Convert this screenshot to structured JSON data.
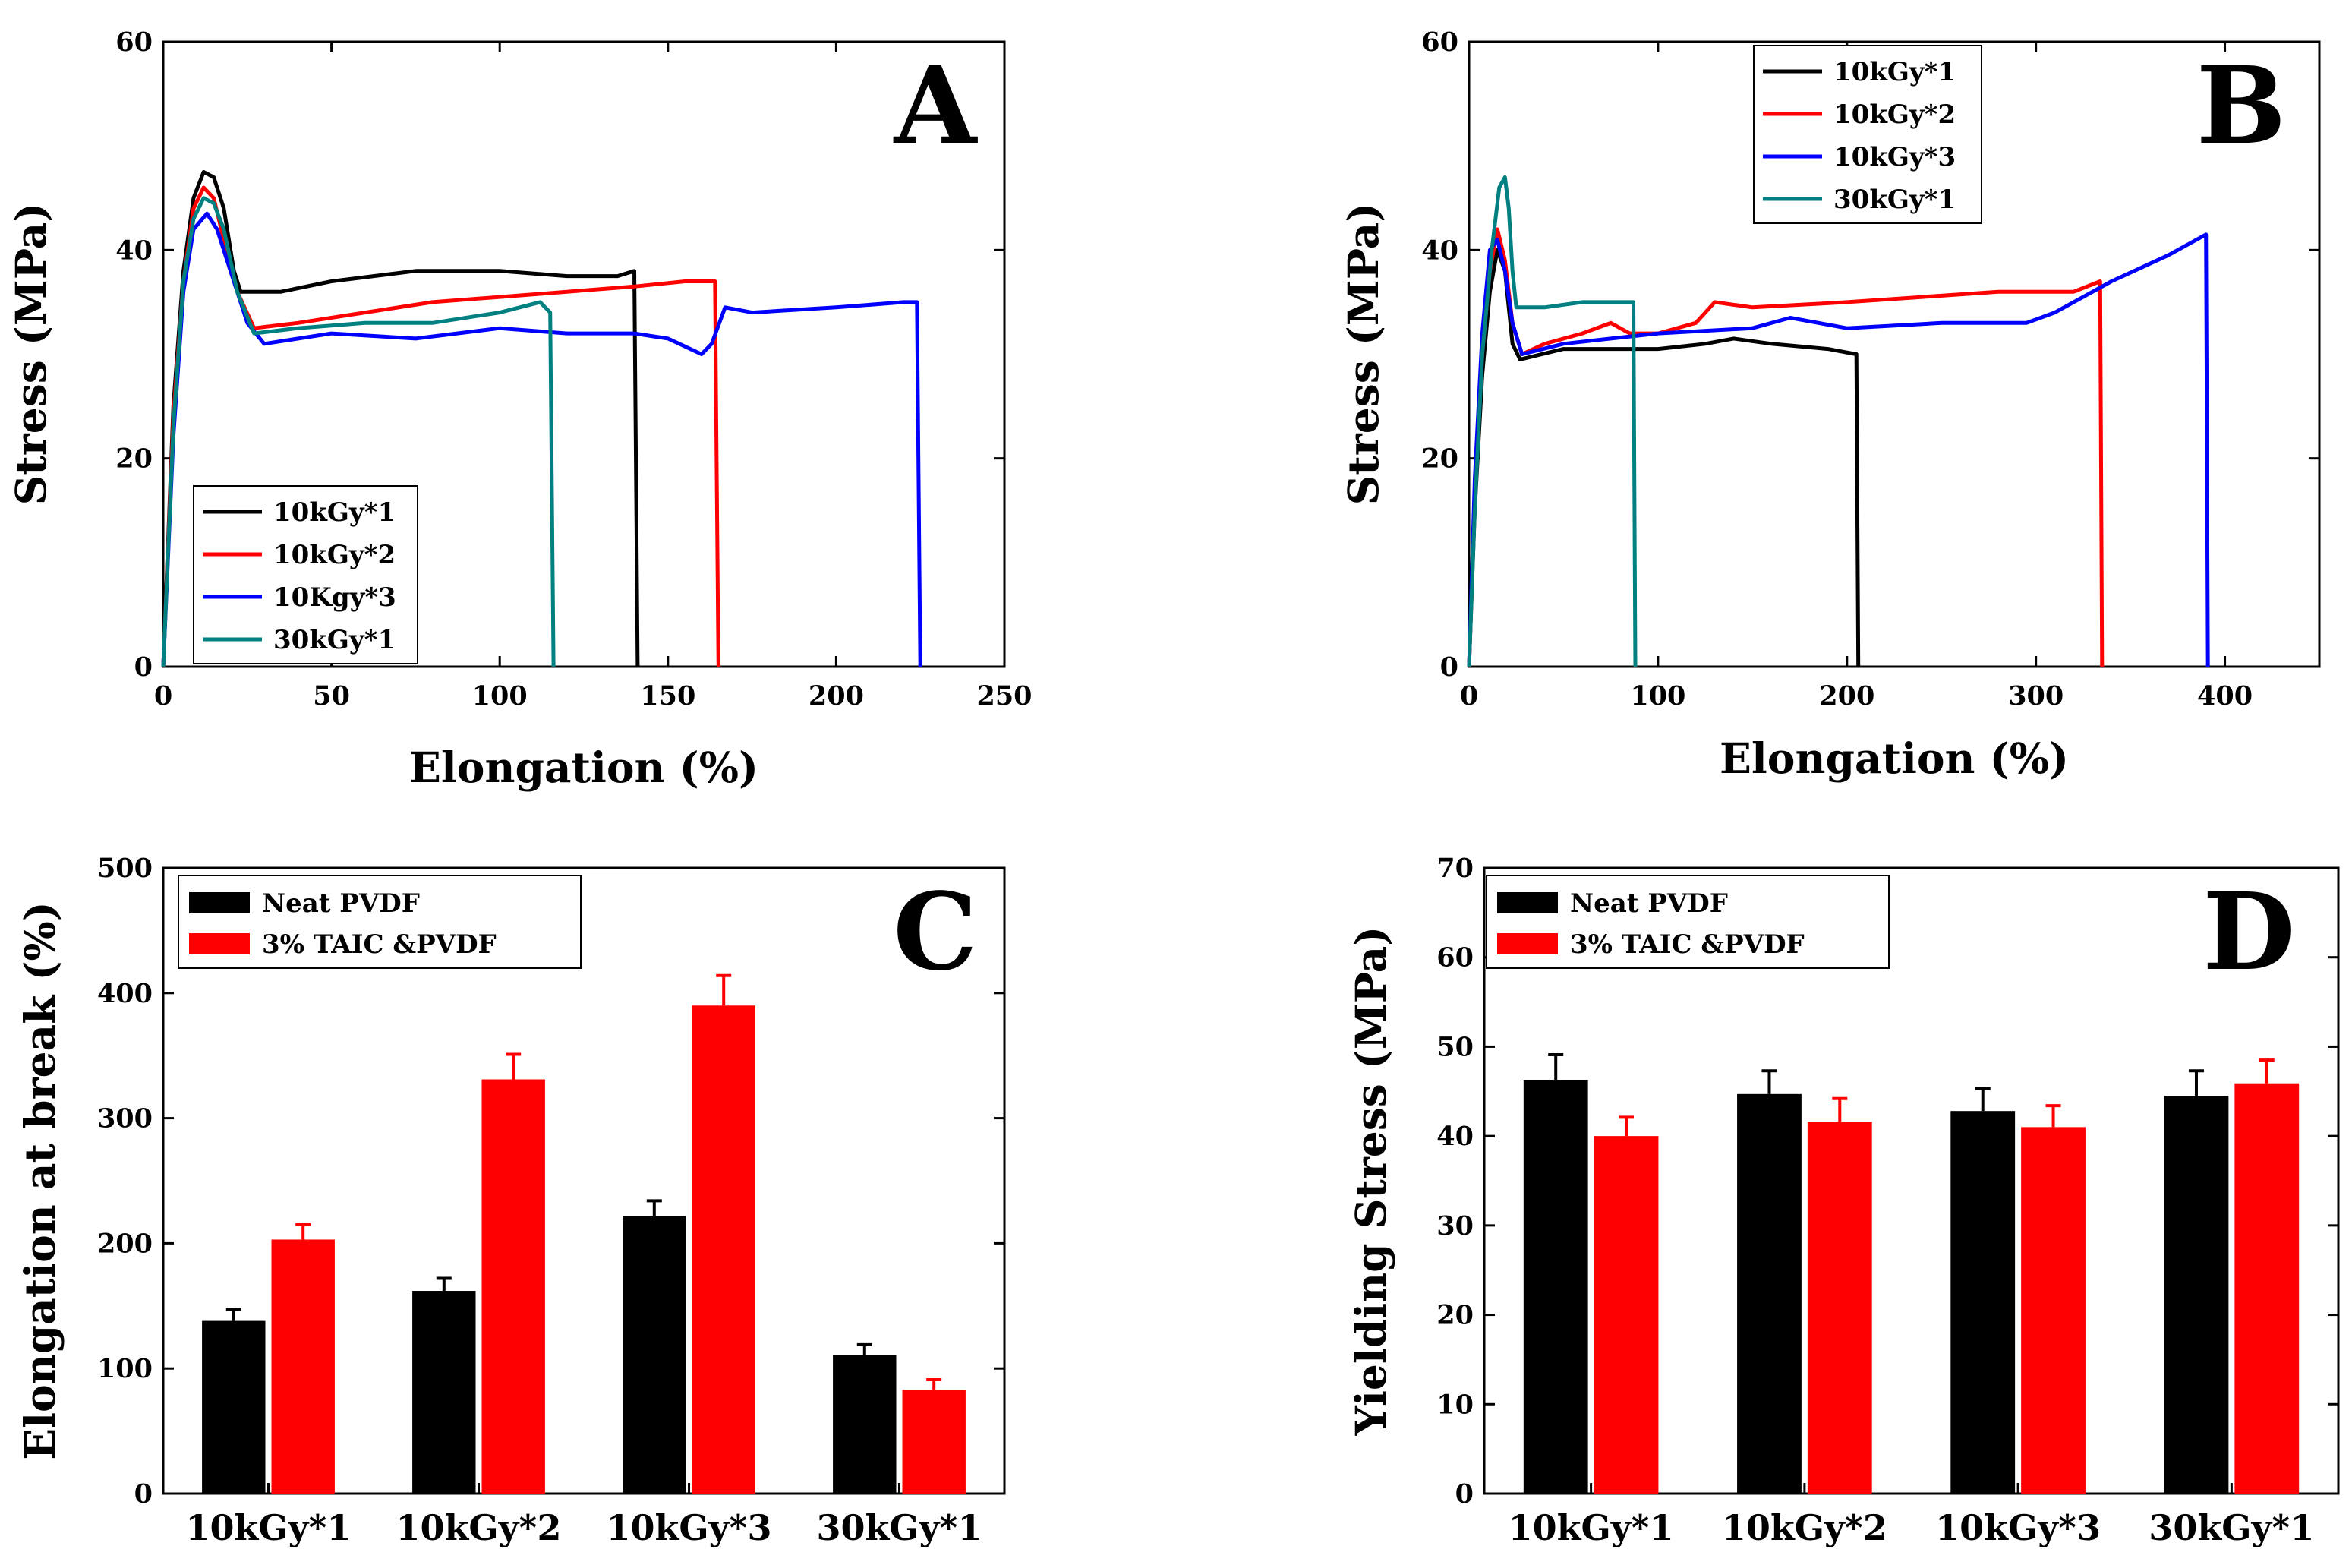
{
  "chart_data": [
    {
      "id": "A",
      "type": "line",
      "panel_letter": "A",
      "xlabel": "Elongation (%)",
      "ylabel": "Stress (MPa)",
      "xlim": [
        0,
        250
      ],
      "ylim": [
        0,
        60
      ],
      "xticks": [
        0,
        50,
        100,
        150,
        200,
        250
      ],
      "yticks": [
        0,
        20,
        40,
        60
      ],
      "legend_position": "bottom-left",
      "series": [
        {
          "name": "10kGy*1",
          "color": "#000000",
          "points": [
            [
              0,
              0
            ],
            [
              3,
              25
            ],
            [
              6,
              38
            ],
            [
              9,
              45
            ],
            [
              12,
              47.5
            ],
            [
              15,
              47
            ],
            [
              18,
              44
            ],
            [
              21,
              38
            ],
            [
              23,
              36
            ],
            [
              35,
              36
            ],
            [
              50,
              37
            ],
            [
              75,
              38
            ],
            [
              100,
              38
            ],
            [
              120,
              37.5
            ],
            [
              135,
              37.5
            ],
            [
              140,
              38
            ],
            [
              141,
              0
            ]
          ]
        },
        {
          "name": "10kGy*2",
          "color": "#ff0000",
          "points": [
            [
              0,
              0
            ],
            [
              3,
              24
            ],
            [
              6,
              37
            ],
            [
              9,
              44
            ],
            [
              12,
              46
            ],
            [
              15,
              45
            ],
            [
              18,
              41
            ],
            [
              22,
              36
            ],
            [
              27,
              32.5
            ],
            [
              40,
              33
            ],
            [
              60,
              34
            ],
            [
              80,
              35
            ],
            [
              100,
              35.5
            ],
            [
              120,
              36
            ],
            [
              140,
              36.5
            ],
            [
              155,
              37
            ],
            [
              164,
              37
            ],
            [
              165,
              0
            ]
          ]
        },
        {
          "name": "10Kgy*3",
          "color": "#0000ff",
          "points": [
            [
              0,
              0
            ],
            [
              3,
              22
            ],
            [
              6,
              36
            ],
            [
              9,
              42
            ],
            [
              13,
              43.5
            ],
            [
              16,
              42
            ],
            [
              20,
              38
            ],
            [
              25,
              33
            ],
            [
              30,
              31
            ],
            [
              50,
              32
            ],
            [
              75,
              31.5
            ],
            [
              100,
              32.5
            ],
            [
              120,
              32
            ],
            [
              140,
              32
            ],
            [
              150,
              31.5
            ],
            [
              160,
              30
            ],
            [
              163,
              31
            ],
            [
              167,
              34.5
            ],
            [
              175,
              34
            ],
            [
              200,
              34.5
            ],
            [
              220,
              35
            ],
            [
              224,
              35
            ],
            [
              225,
              0
            ]
          ]
        },
        {
          "name": "30kGy*1",
          "color": "#008080",
          "points": [
            [
              0,
              0
            ],
            [
              3,
              23
            ],
            [
              6,
              37
            ],
            [
              9,
              43
            ],
            [
              12,
              45
            ],
            [
              15,
              44.5
            ],
            [
              18,
              42
            ],
            [
              22,
              36
            ],
            [
              27,
              32
            ],
            [
              40,
              32.5
            ],
            [
              60,
              33
            ],
            [
              80,
              33
            ],
            [
              100,
              34
            ],
            [
              112,
              35
            ],
            [
              115,
              34
            ],
            [
              116,
              0
            ]
          ]
        }
      ]
    },
    {
      "id": "B",
      "type": "line",
      "panel_letter": "B",
      "xlabel": "Elongation (%)",
      "ylabel": "Stress (MPa)",
      "xlim": [
        0,
        450
      ],
      "ylim": [
        0,
        60
      ],
      "xticks": [
        0,
        100,
        200,
        300,
        400
      ],
      "yticks": [
        0,
        20,
        40,
        60
      ],
      "legend_position": "top-left",
      "series": [
        {
          "name": "10kGy*1",
          "color": "#000000",
          "points": [
            [
              0,
              0
            ],
            [
              3,
              15
            ],
            [
              7,
              28
            ],
            [
              11,
              36
            ],
            [
              15,
              40
            ],
            [
              19,
              38
            ],
            [
              23,
              31
            ],
            [
              27,
              29.5
            ],
            [
              50,
              30.5
            ],
            [
              75,
              30.5
            ],
            [
              100,
              30.5
            ],
            [
              125,
              31
            ],
            [
              140,
              31.5
            ],
            [
              160,
              31
            ],
            [
              190,
              30.5
            ],
            [
              205,
              30
            ],
            [
              206,
              0
            ]
          ]
        },
        {
          "name": "10kGy*2",
          "color": "#ff0000",
          "points": [
            [
              0,
              0
            ],
            [
              3,
              16
            ],
            [
              7,
              30
            ],
            [
              11,
              38
            ],
            [
              15,
              42
            ],
            [
              19,
              39
            ],
            [
              23,
              33
            ],
            [
              28,
              30
            ],
            [
              40,
              31
            ],
            [
              60,
              32
            ],
            [
              75,
              33
            ],
            [
              85,
              32
            ],
            [
              100,
              32
            ],
            [
              120,
              33
            ],
            [
              130,
              35
            ],
            [
              150,
              34.5
            ],
            [
              200,
              35
            ],
            [
              240,
              35.5
            ],
            [
              280,
              36
            ],
            [
              320,
              36
            ],
            [
              334,
              37
            ],
            [
              335,
              0
            ]
          ]
        },
        {
          "name": "10kGy*3",
          "color": "#0000ff",
          "points": [
            [
              0,
              0
            ],
            [
              3,
              18
            ],
            [
              7,
              32
            ],
            [
              11,
              40
            ],
            [
              15,
              41
            ],
            [
              19,
              38
            ],
            [
              23,
              33
            ],
            [
              28,
              30
            ],
            [
              50,
              31
            ],
            [
              75,
              31.5
            ],
            [
              100,
              32
            ],
            [
              150,
              32.5
            ],
            [
              170,
              33.5
            ],
            [
              200,
              32.5
            ],
            [
              250,
              33
            ],
            [
              295,
              33
            ],
            [
              310,
              34
            ],
            [
              340,
              37
            ],
            [
              370,
              39.5
            ],
            [
              390,
              41.5
            ],
            [
              391,
              0
            ]
          ]
        },
        {
          "name": "30kGy*1",
          "color": "#008080",
          "points": [
            [
              0,
              0
            ],
            [
              3,
              15
            ],
            [
              7,
              30
            ],
            [
              12,
              40
            ],
            [
              16,
              46
            ],
            [
              19,
              47
            ],
            [
              21,
              44
            ],
            [
              23,
              38
            ],
            [
              25,
              34.5
            ],
            [
              40,
              34.5
            ],
            [
              60,
              35
            ],
            [
              80,
              35
            ],
            [
              87,
              35
            ],
            [
              88,
              0
            ]
          ]
        }
      ]
    },
    {
      "id": "C",
      "type": "bar",
      "panel_letter": "C",
      "xlabel": "",
      "ylabel": "Elongation at break (%)",
      "ylim": [
        0,
        500
      ],
      "yticks": [
        0,
        100,
        200,
        300,
        400,
        500
      ],
      "categories": [
        "10kGy*1",
        "10kGy*2",
        "10kGy*3",
        "30kGy*1"
      ],
      "legend_position": "top-left",
      "series": [
        {
          "name": "Neat PVDF",
          "color": "#000000",
          "values": [
            138,
            162,
            222,
            111
          ],
          "errors": [
            9,
            10,
            12,
            8
          ]
        },
        {
          "name": "3% TAIC &PVDF",
          "color": "#ff0000",
          "values": [
            203,
            331,
            390,
            83
          ],
          "errors": [
            12,
            20,
            24,
            8
          ]
        }
      ]
    },
    {
      "id": "D",
      "type": "bar",
      "panel_letter": "D",
      "xlabel": "",
      "ylabel": "Yielding Stress (MPa)",
      "ylim": [
        0,
        70
      ],
      "yticks": [
        0,
        10,
        20,
        30,
        40,
        50,
        60,
        70
      ],
      "categories": [
        "10kGy*1",
        "10kGy*2",
        "10kGy*3",
        "30kGy*1"
      ],
      "legend_position": "top-left",
      "series": [
        {
          "name": "Neat PVDF",
          "color": "#000000",
          "values": [
            46.3,
            44.7,
            42.8,
            44.5
          ],
          "errors": [
            2.8,
            2.6,
            2.5,
            2.8
          ]
        },
        {
          "name": "3% TAIC &PVDF",
          "color": "#ff0000",
          "values": [
            40.0,
            41.6,
            41.0,
            45.9
          ],
          "errors": [
            2.1,
            2.6,
            2.4,
            2.6
          ]
        }
      ]
    }
  ]
}
